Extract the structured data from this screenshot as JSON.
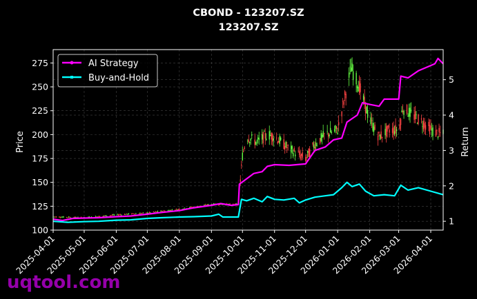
{
  "chart_data": {
    "type": "line",
    "title": "CBOND - 123207.SZ",
    "subtitle": "123207.SZ",
    "ylabel_left": "Price",
    "ylabel_right": "Return",
    "xlabel": "",
    "grid": true,
    "legend_position": "top-left",
    "watermark": "uqtool.com",
    "x_ticks": [
      "2025-04-01",
      "2025-05-01",
      "2025-06-01",
      "2025-07-01",
      "2025-08-01",
      "2025-09-01",
      "2025-10-01",
      "2025-11-01",
      "2025-12-01",
      "2026-01-01",
      "2026-02-01",
      "2026-03-01",
      "2026-04-01"
    ],
    "xlim": [
      "2025-04-01",
      "2026-04-13"
    ],
    "y_left": {
      "ticks": [
        100,
        125,
        150,
        175,
        200,
        225,
        250,
        275
      ],
      "lim": [
        100,
        289
      ]
    },
    "y_right": {
      "ticks": [
        1,
        2,
        3,
        4,
        5
      ],
      "lim": [
        0.75,
        5.85
      ]
    },
    "colors": {
      "ai": "#ff00ff",
      "bh": "#00ffff",
      "up": "#66ff44",
      "down": "#ff4444",
      "grid": "#444444"
    },
    "series": [
      {
        "name": "AI Strategy",
        "axis": "right",
        "color": "#ff00ff",
        "points": [
          [
            "2025-04-01",
            1.06
          ],
          [
            "2025-04-10",
            1.02
          ],
          [
            "2025-04-20",
            1.08
          ],
          [
            "2025-05-01",
            1.09
          ],
          [
            "2025-05-15",
            1.1
          ],
          [
            "2025-06-01",
            1.13
          ],
          [
            "2025-06-15",
            1.15
          ],
          [
            "2025-07-01",
            1.2
          ],
          [
            "2025-07-15",
            1.25
          ],
          [
            "2025-08-01",
            1.3
          ],
          [
            "2025-08-15",
            1.38
          ],
          [
            "2025-09-01",
            1.45
          ],
          [
            "2025-09-10",
            1.5
          ],
          [
            "2025-09-20",
            1.45
          ],
          [
            "2025-09-27",
            1.47
          ],
          [
            "2025-09-28",
            2.05
          ],
          [
            "2025-10-05",
            2.2
          ],
          [
            "2025-10-12",
            2.35
          ],
          [
            "2025-10-20",
            2.4
          ],
          [
            "2025-10-25",
            2.55
          ],
          [
            "2025-11-01",
            2.6
          ],
          [
            "2025-11-15",
            2.58
          ],
          [
            "2025-12-01",
            2.62
          ],
          [
            "2025-12-10",
            3.0
          ],
          [
            "2025-12-20",
            3.1
          ],
          [
            "2025-12-28",
            3.3
          ],
          [
            "2026-01-05",
            3.35
          ],
          [
            "2026-01-10",
            3.8
          ],
          [
            "2026-01-20",
            4.0
          ],
          [
            "2026-01-25",
            4.35
          ],
          [
            "2026-02-01",
            4.3
          ],
          [
            "2026-02-10",
            4.25
          ],
          [
            "2026-02-15",
            4.45
          ],
          [
            "2026-03-01",
            4.45
          ],
          [
            "2026-03-03",
            5.1
          ],
          [
            "2026-03-10",
            5.05
          ],
          [
            "2026-03-20",
            5.25
          ],
          [
            "2026-04-01",
            5.4
          ],
          [
            "2026-04-05",
            5.45
          ],
          [
            "2026-04-08",
            5.6
          ],
          [
            "2026-04-13",
            5.45
          ]
        ]
      },
      {
        "name": "Buy-and-Hold",
        "axis": "right",
        "color": "#00ffff",
        "points": [
          [
            "2025-04-01",
            1.0
          ],
          [
            "2025-04-15",
            0.97
          ],
          [
            "2025-05-01",
            0.99
          ],
          [
            "2025-05-15",
            1.0
          ],
          [
            "2025-06-01",
            1.03
          ],
          [
            "2025-06-15",
            1.04
          ],
          [
            "2025-07-01",
            1.08
          ],
          [
            "2025-07-15",
            1.1
          ],
          [
            "2025-08-01",
            1.12
          ],
          [
            "2025-08-15",
            1.13
          ],
          [
            "2025-09-01",
            1.15
          ],
          [
            "2025-09-08",
            1.2
          ],
          [
            "2025-09-12",
            1.12
          ],
          [
            "2025-09-27",
            1.12
          ],
          [
            "2025-09-30",
            1.62
          ],
          [
            "2025-10-05",
            1.58
          ],
          [
            "2025-10-12",
            1.65
          ],
          [
            "2025-10-20",
            1.55
          ],
          [
            "2025-10-25",
            1.7
          ],
          [
            "2025-11-01",
            1.62
          ],
          [
            "2025-11-10",
            1.6
          ],
          [
            "2025-11-20",
            1.65
          ],
          [
            "2025-11-25",
            1.52
          ],
          [
            "2025-12-01",
            1.6
          ],
          [
            "2025-12-10",
            1.68
          ],
          [
            "2025-12-20",
            1.72
          ],
          [
            "2025-12-28",
            1.75
          ],
          [
            "2026-01-05",
            1.95
          ],
          [
            "2026-01-10",
            2.1
          ],
          [
            "2026-01-15",
            1.98
          ],
          [
            "2026-01-22",
            2.05
          ],
          [
            "2026-01-28",
            1.85
          ],
          [
            "2026-02-05",
            1.72
          ],
          [
            "2026-02-15",
            1.75
          ],
          [
            "2026-02-25",
            1.72
          ],
          [
            "2026-03-03",
            2.02
          ],
          [
            "2026-03-10",
            1.88
          ],
          [
            "2026-03-20",
            1.95
          ],
          [
            "2026-04-01",
            1.85
          ],
          [
            "2026-04-13",
            1.75
          ]
        ]
      }
    ],
    "price_candles_trend": [
      [
        "2025-04-01",
        114
      ],
      [
        "2025-05-01",
        113
      ],
      [
        "2025-06-01",
        116
      ],
      [
        "2025-07-01",
        118
      ],
      [
        "2025-08-01",
        122
      ],
      [
        "2025-09-01",
        127
      ],
      [
        "2025-09-27",
        127
      ],
      [
        "2025-10-01",
        178
      ],
      [
        "2025-10-05",
        198
      ],
      [
        "2025-10-15",
        192
      ],
      [
        "2025-10-25",
        200
      ],
      [
        "2025-11-01",
        198
      ],
      [
        "2025-11-15",
        185
      ],
      [
        "2025-12-01",
        175
      ],
      [
        "2025-12-10",
        190
      ],
      [
        "2025-12-20",
        200
      ],
      [
        "2026-01-01",
        205
      ],
      [
        "2026-01-08",
        240
      ],
      [
        "2026-01-14",
        270
      ],
      [
        "2026-01-22",
        250
      ],
      [
        "2026-02-01",
        215
      ],
      [
        "2026-02-10",
        198
      ],
      [
        "2026-02-20",
        205
      ],
      [
        "2026-03-01",
        205
      ],
      [
        "2026-03-05",
        228
      ],
      [
        "2026-03-15",
        220
      ],
      [
        "2026-03-25",
        212
      ],
      [
        "2026-04-05",
        202
      ],
      [
        "2026-04-13",
        200
      ]
    ]
  }
}
